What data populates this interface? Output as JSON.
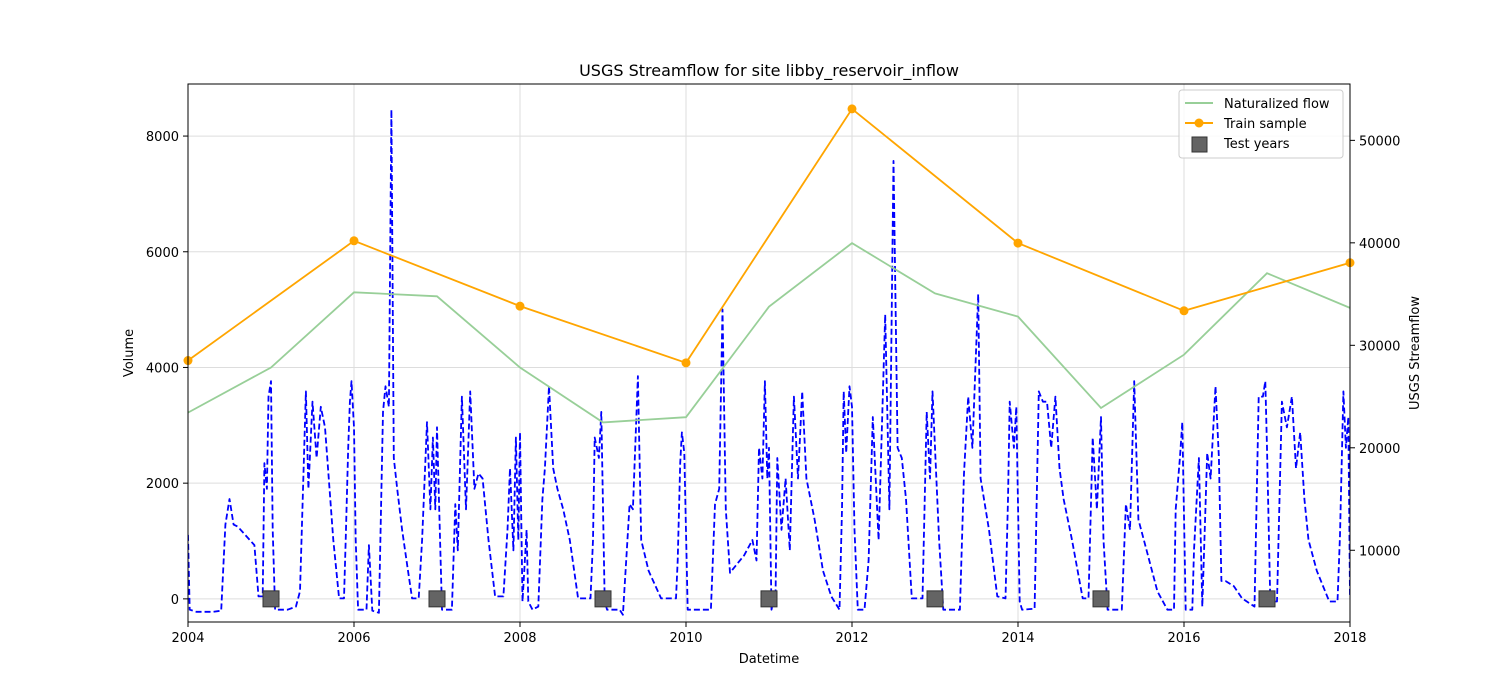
{
  "chart_data": {
    "type": "line",
    "title": "USGS Streamflow for site libby_reservoir_inflow",
    "xlabel": "Datetime",
    "ylabel_left": "Volume",
    "ylabel_right": "USGS Streamflow",
    "xlim": [
      2004,
      2018
    ],
    "ylim_left": [
      -400,
      8900
    ],
    "ylim_right": [
      3000,
      55500
    ],
    "x_ticks": [
      "2004",
      "2006",
      "2008",
      "2010",
      "2012",
      "2014",
      "2016",
      "2018"
    ],
    "y_ticks_left": [
      "0",
      "2000",
      "4000",
      "6000",
      "8000"
    ],
    "y_ticks_right": [
      "10000",
      "20000",
      "30000",
      "40000",
      "50000"
    ],
    "grid": true,
    "legend_position": "top-right",
    "colors": {
      "naturalized": "#98cf98",
      "train": "#ffa500",
      "usgs": "#0000ff",
      "test": "#646464"
    },
    "series": [
      {
        "name": "Naturalized flow",
        "axis": "left",
        "style": "line",
        "points": [
          [
            2004,
            3220
          ],
          [
            2005,
            4000
          ],
          [
            2006,
            5300
          ],
          [
            2007,
            5230
          ],
          [
            2008,
            4000
          ],
          [
            2009,
            3050
          ],
          [
            2010,
            3140
          ],
          [
            2011,
            5050
          ],
          [
            2012,
            6150
          ],
          [
            2013,
            5280
          ],
          [
            2014,
            4880
          ],
          [
            2015,
            3300
          ],
          [
            2016,
            4220
          ],
          [
            2017,
            5630
          ],
          [
            2018,
            5030
          ]
        ]
      },
      {
        "name": "Train sample",
        "axis": "left",
        "style": "line-marker",
        "points": [
          [
            2004,
            4120
          ],
          [
            2006,
            6190
          ],
          [
            2008,
            5060
          ],
          [
            2010,
            4080
          ],
          [
            2012,
            8470
          ],
          [
            2014,
            6150
          ],
          [
            2016,
            4980
          ],
          [
            2018,
            5810
          ]
        ]
      },
      {
        "name": "Test years",
        "axis": "left",
        "style": "square-marker",
        "points": [
          [
            2005,
            0
          ],
          [
            2007,
            0
          ],
          [
            2009,
            0
          ],
          [
            2011,
            0
          ],
          [
            2013,
            0
          ],
          [
            2015,
            0
          ],
          [
            2017,
            0
          ]
        ]
      },
      {
        "name": "",
        "axis": "right",
        "style": "dashed-line",
        "points": [
          [
            2004.0,
            11500
          ],
          [
            2004.02,
            4200
          ],
          [
            2004.1,
            4000
          ],
          [
            2004.3,
            4000
          ],
          [
            2004.4,
            4100
          ],
          [
            2004.45,
            12500
          ],
          [
            2004.5,
            15000
          ],
          [
            2004.55,
            12500
          ],
          [
            2004.6,
            12300
          ],
          [
            2004.8,
            10500
          ],
          [
            2004.85,
            5500
          ],
          [
            2004.9,
            5500
          ],
          [
            2004.92,
            18500
          ],
          [
            2004.95,
            16000
          ],
          [
            2004.97,
            25000
          ],
          [
            2005.0,
            26500
          ],
          [
            2005.02,
            12000
          ],
          [
            2005.05,
            4200
          ],
          [
            2005.2,
            4200
          ],
          [
            2005.3,
            4500
          ],
          [
            2005.35,
            6000
          ],
          [
            2005.42,
            25500
          ],
          [
            2005.45,
            16000
          ],
          [
            2005.5,
            24500
          ],
          [
            2005.55,
            19000
          ],
          [
            2005.6,
            24000
          ],
          [
            2005.65,
            22000
          ],
          [
            2005.75,
            11000
          ],
          [
            2005.82,
            5300
          ],
          [
            2005.88,
            5300
          ],
          [
            2005.9,
            11000
          ],
          [
            2005.93,
            20000
          ],
          [
            2005.95,
            24500
          ],
          [
            2005.97,
            26500
          ],
          [
            2006.0,
            22000
          ],
          [
            2006.02,
            11000
          ],
          [
            2006.05,
            4200
          ],
          [
            2006.15,
            4200
          ],
          [
            2006.18,
            10500
          ],
          [
            2006.22,
            4100
          ],
          [
            2006.3,
            3900
          ],
          [
            2006.35,
            23500
          ],
          [
            2006.38,
            26000
          ],
          [
            2006.42,
            24000
          ],
          [
            2006.45,
            53000
          ],
          [
            2006.48,
            19000
          ],
          [
            2006.52,
            16000
          ],
          [
            2006.58,
            12000
          ],
          [
            2006.65,
            8000
          ],
          [
            2006.7,
            5300
          ],
          [
            2006.78,
            5300
          ],
          [
            2006.82,
            11000
          ],
          [
            2006.88,
            22500
          ],
          [
            2006.92,
            14000
          ],
          [
            2006.95,
            21000
          ],
          [
            2006.98,
            14000
          ],
          [
            2007.0,
            22000
          ],
          [
            2007.03,
            13000
          ],
          [
            2007.06,
            4200
          ],
          [
            2007.18,
            4200
          ],
          [
            2007.22,
            14500
          ],
          [
            2007.25,
            10000
          ],
          [
            2007.3,
            25000
          ],
          [
            2007.35,
            14000
          ],
          [
            2007.4,
            25500
          ],
          [
            2007.45,
            16000
          ],
          [
            2007.5,
            17500
          ],
          [
            2007.55,
            17000
          ],
          [
            2007.62,
            11000
          ],
          [
            2007.7,
            5500
          ],
          [
            2007.8,
            5500
          ],
          [
            2007.85,
            12000
          ],
          [
            2007.88,
            18000
          ],
          [
            2007.92,
            10000
          ],
          [
            2007.95,
            21000
          ],
          [
            2007.98,
            11000
          ],
          [
            2008.0,
            21500
          ],
          [
            2008.03,
            5000
          ],
          [
            2008.08,
            12000
          ],
          [
            2008.1,
            5000
          ],
          [
            2008.15,
            4200
          ],
          [
            2008.22,
            4500
          ],
          [
            2008.27,
            15000
          ],
          [
            2008.3,
            18000
          ],
          [
            2008.35,
            26000
          ],
          [
            2008.4,
            18000
          ],
          [
            2008.45,
            16000
          ],
          [
            2008.52,
            14000
          ],
          [
            2008.6,
            11000
          ],
          [
            2008.7,
            5300
          ],
          [
            2008.85,
            5300
          ],
          [
            2008.88,
            11000
          ],
          [
            2008.9,
            21000
          ],
          [
            2008.95,
            19000
          ],
          [
            2008.98,
            23500
          ],
          [
            2009.02,
            5000
          ],
          [
            2009.05,
            4200
          ],
          [
            2009.2,
            4200
          ],
          [
            2009.24,
            3700
          ],
          [
            2009.28,
            9000
          ],
          [
            2009.32,
            14500
          ],
          [
            2009.36,
            14000
          ],
          [
            2009.42,
            27000
          ],
          [
            2009.46,
            11000
          ],
          [
            2009.55,
            8000
          ],
          [
            2009.7,
            5300
          ],
          [
            2009.88,
            5300
          ],
          [
            2009.9,
            9000
          ],
          [
            2009.93,
            18500
          ],
          [
            2009.95,
            21500
          ],
          [
            2009.98,
            19500
          ],
          [
            2010.02,
            4200
          ],
          [
            2010.3,
            4200
          ],
          [
            2010.35,
            14500
          ],
          [
            2010.4,
            16000
          ],
          [
            2010.44,
            33500
          ],
          [
            2010.48,
            14000
          ],
          [
            2010.53,
            7800
          ],
          [
            2010.6,
            8500
          ],
          [
            2010.7,
            9500
          ],
          [
            2010.8,
            11000
          ],
          [
            2010.85,
            9000
          ],
          [
            2010.88,
            20000
          ],
          [
            2010.92,
            17000
          ],
          [
            2010.95,
            26500
          ],
          [
            2010.98,
            17000
          ],
          [
            2011.0,
            20000
          ],
          [
            2011.03,
            4200
          ],
          [
            2011.08,
            6000
          ],
          [
            2011.1,
            19000
          ],
          [
            2011.15,
            12000
          ],
          [
            2011.2,
            17000
          ],
          [
            2011.25,
            10000
          ],
          [
            2011.3,
            25000
          ],
          [
            2011.35,
            17000
          ],
          [
            2011.4,
            25500
          ],
          [
            2011.45,
            17000
          ],
          [
            2011.55,
            13000
          ],
          [
            2011.65,
            8000
          ],
          [
            2011.75,
            5500
          ],
          [
            2011.85,
            4200
          ],
          [
            2011.88,
            14000
          ],
          [
            2011.9,
            25500
          ],
          [
            2011.93,
            19500
          ],
          [
            2011.97,
            26000
          ],
          [
            2012.0,
            24000
          ],
          [
            2012.03,
            12000
          ],
          [
            2012.07,
            4200
          ],
          [
            2012.15,
            4200
          ],
          [
            2012.2,
            9000
          ],
          [
            2012.25,
            23000
          ],
          [
            2012.32,
            11000
          ],
          [
            2012.4,
            33000
          ],
          [
            2012.45,
            14000
          ],
          [
            2012.5,
            48000
          ],
          [
            2012.55,
            20000
          ],
          [
            2012.6,
            19000
          ],
          [
            2012.65,
            15000
          ],
          [
            2012.72,
            5300
          ],
          [
            2012.85,
            5300
          ],
          [
            2012.9,
            23500
          ],
          [
            2012.94,
            17000
          ],
          [
            2012.97,
            25500
          ],
          [
            2013.0,
            20000
          ],
          [
            2013.05,
            11000
          ],
          [
            2013.1,
            4200
          ],
          [
            2013.3,
            4200
          ],
          [
            2013.35,
            17500
          ],
          [
            2013.4,
            25000
          ],
          [
            2013.45,
            20000
          ],
          [
            2013.52,
            35000
          ],
          [
            2013.55,
            17000
          ],
          [
            2013.65,
            12000
          ],
          [
            2013.75,
            5500
          ],
          [
            2013.85,
            5300
          ],
          [
            2013.88,
            15000
          ],
          [
            2013.9,
            24500
          ],
          [
            2013.95,
            20000
          ],
          [
            2013.98,
            24000
          ],
          [
            2014.02,
            5000
          ],
          [
            2014.05,
            4200
          ],
          [
            2014.2,
            4300
          ],
          [
            2014.25,
            25500
          ],
          [
            2014.3,
            24500
          ],
          [
            2014.35,
            24500
          ],
          [
            2014.4,
            20000
          ],
          [
            2014.45,
            25000
          ],
          [
            2014.5,
            18000
          ],
          [
            2014.55,
            15000
          ],
          [
            2014.65,
            11000
          ],
          [
            2014.78,
            5300
          ],
          [
            2014.85,
            5300
          ],
          [
            2014.9,
            21000
          ],
          [
            2014.95,
            14000
          ],
          [
            2015.0,
            23000
          ],
          [
            2015.03,
            11000
          ],
          [
            2015.08,
            4200
          ],
          [
            2015.25,
            4200
          ],
          [
            2015.3,
            14500
          ],
          [
            2015.35,
            12000
          ],
          [
            2015.4,
            26500
          ],
          [
            2015.45,
            13000
          ],
          [
            2015.55,
            10000
          ],
          [
            2015.68,
            6000
          ],
          [
            2015.8,
            4200
          ],
          [
            2015.88,
            4200
          ],
          [
            2015.9,
            14000
          ],
          [
            2015.95,
            19000
          ],
          [
            2015.98,
            22500
          ],
          [
            2016.02,
            4200
          ],
          [
            2016.1,
            4200
          ],
          [
            2016.12,
            10000
          ],
          [
            2016.18,
            19000
          ],
          [
            2016.22,
            4500
          ],
          [
            2016.28,
            19500
          ],
          [
            2016.32,
            17000
          ],
          [
            2016.38,
            26000
          ],
          [
            2016.42,
            19000
          ],
          [
            2016.45,
            7000
          ],
          [
            2016.5,
            7000
          ],
          [
            2016.6,
            6500
          ],
          [
            2016.7,
            5300
          ],
          [
            2016.85,
            4500
          ],
          [
            2016.9,
            25000
          ],
          [
            2016.95,
            25000
          ],
          [
            2016.98,
            26500
          ],
          [
            2017.0,
            20000
          ],
          [
            2017.04,
            5000
          ],
          [
            2017.08,
            5000
          ],
          [
            2017.12,
            5000
          ],
          [
            2017.18,
            24500
          ],
          [
            2017.24,
            22000
          ],
          [
            2017.3,
            25000
          ],
          [
            2017.35,
            18000
          ],
          [
            2017.4,
            21500
          ],
          [
            2017.45,
            15000
          ],
          [
            2017.5,
            11000
          ],
          [
            2017.6,
            8000
          ],
          [
            2017.75,
            5000
          ],
          [
            2017.85,
            5000
          ],
          [
            2017.88,
            11500
          ],
          [
            2017.92,
            25500
          ],
          [
            2017.95,
            20000
          ],
          [
            2017.98,
            23000
          ],
          [
            2018.0,
            5500
          ]
        ]
      }
    ]
  }
}
